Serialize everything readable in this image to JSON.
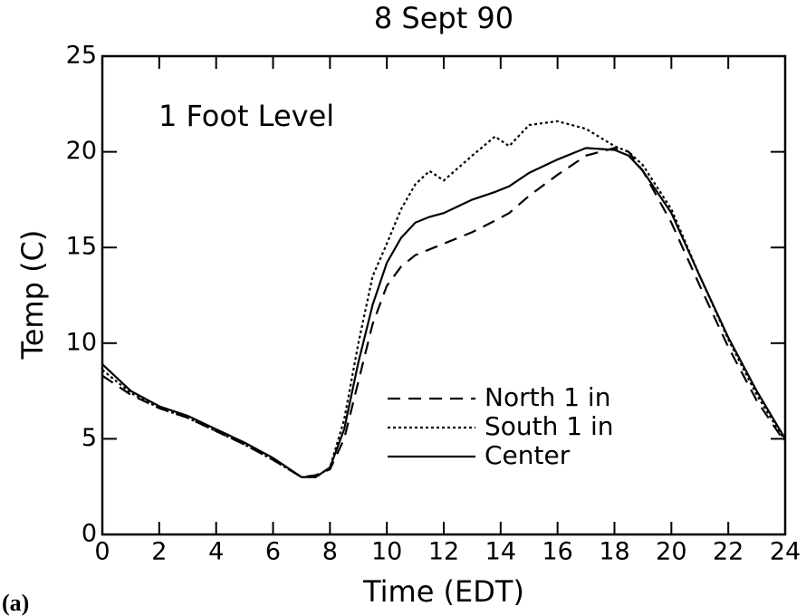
{
  "chart_data": {
    "type": "line",
    "title": "8 Sept 90",
    "annotation": "1 Foot Level",
    "xlabel": "Time (EDT)",
    "ylabel": "Temp (C)",
    "panel_label": "(a)",
    "x": [
      0,
      1,
      2,
      3,
      4,
      5,
      6,
      7,
      7.5,
      8,
      8.5,
      9,
      9.5,
      10,
      10.5,
      11,
      11.5,
      12,
      13,
      13.8,
      14.3,
      15,
      16,
      17,
      18,
      18.5,
      19,
      20,
      21,
      22,
      23,
      24
    ],
    "series": [
      {
        "name": "North 1 in",
        "color": "#000000",
        "dash": "14 9",
        "values": [
          8.3,
          7.3,
          6.6,
          6.1,
          5.4,
          4.7,
          3.9,
          3.0,
          3.1,
          3.4,
          5.0,
          8.0,
          11.0,
          13.0,
          14.0,
          14.6,
          14.9,
          15.2,
          15.8,
          16.4,
          16.8,
          17.7,
          18.8,
          19.8,
          20.2,
          20.0,
          19.0,
          16.3,
          13.0,
          9.8,
          7.0,
          4.8
        ]
      },
      {
        "name": "South 1 in",
        "color": "#000000",
        "dash": "3 3",
        "values": [
          8.6,
          7.4,
          6.6,
          6.1,
          5.4,
          4.7,
          3.9,
          3.0,
          3.0,
          3.5,
          6.0,
          10.0,
          13.5,
          15.2,
          17.0,
          18.3,
          19.0,
          18.5,
          19.8,
          20.8,
          20.3,
          21.4,
          21.6,
          21.2,
          20.3,
          20.0,
          19.3,
          17.0,
          13.5,
          10.2,
          7.3,
          4.9
        ]
      },
      {
        "name": "Center",
        "color": "#000000",
        "dash": "none",
        "values": [
          8.9,
          7.5,
          6.7,
          6.2,
          5.5,
          4.8,
          4.0,
          3.0,
          3.0,
          3.5,
          5.5,
          9.0,
          12.0,
          14.2,
          15.5,
          16.3,
          16.6,
          16.8,
          17.5,
          17.9,
          18.2,
          18.9,
          19.6,
          20.2,
          20.1,
          19.8,
          19.0,
          16.8,
          13.5,
          10.3,
          7.5,
          5.0
        ]
      }
    ],
    "xlim": [
      0,
      24
    ],
    "xticks": [
      0,
      2,
      4,
      6,
      8,
      10,
      12,
      14,
      16,
      18,
      20,
      22,
      24
    ],
    "ylim": [
      0,
      25
    ],
    "yticks": [
      0,
      5,
      10,
      15,
      20,
      25
    ],
    "grid": false
  }
}
